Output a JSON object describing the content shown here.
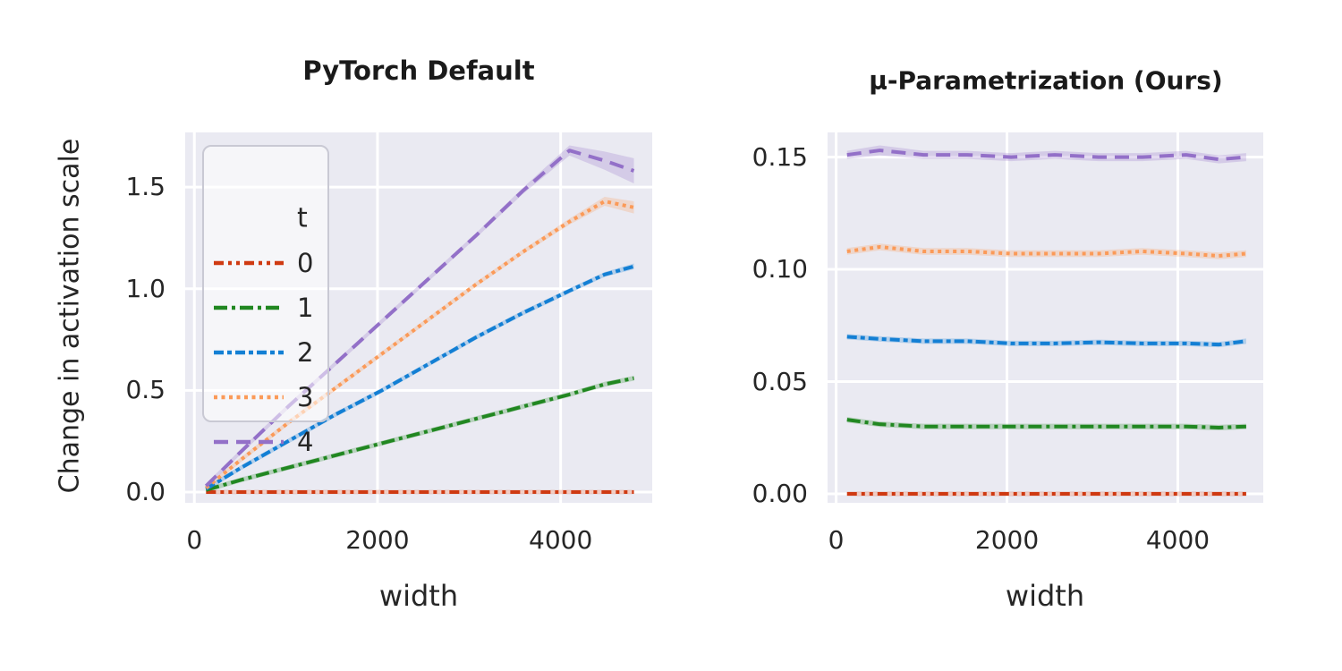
{
  "figure": {
    "background_color": "#ffffff",
    "plot_background_color": "#eaeaf2",
    "grid_color": "#ffffff",
    "text_color": "#262626"
  },
  "legend": {
    "title": "t",
    "entries": [
      {
        "label": "0",
        "color": "#cf3a12",
        "dash": "11 5 4 5 4 5",
        "dash_name": "dash-dot-dot"
      },
      {
        "label": "1",
        "color": "#218721",
        "dash": "15 5 4 5",
        "dash_name": "dash-dot"
      },
      {
        "label": "2",
        "color": "#137fd4",
        "dash": "11 4 5 4",
        "dash_name": "dash-dot-dense"
      },
      {
        "label": "3",
        "color": "#fb9a58",
        "dash": "4 4.5",
        "dash_name": "dotted"
      },
      {
        "label": "4",
        "color": "#9370c8",
        "dash": "16 9",
        "dash_name": "dashed"
      }
    ],
    "position": "upper-left-of-first-panel"
  },
  "chart_data": [
    {
      "type": "line",
      "title": "PyTorch Default",
      "xlabel": "width",
      "ylabel": "Change in activation scale",
      "grid": true,
      "x_ticks": [
        0,
        2000,
        4000
      ],
      "x_tick_labels": [
        "0",
        "2000",
        "4000"
      ],
      "y_ticks": [
        0.0,
        0.5,
        1.0,
        1.5
      ],
      "y_tick_labels": [
        "0.0",
        "0.5",
        "1.0",
        "1.5"
      ],
      "xlim": [
        -100,
        5000
      ],
      "ylim": [
        -0.053,
        1.769
      ],
      "x": [
        128,
        512,
        1024,
        1536,
        2048,
        2560,
        3072,
        3584,
        4096,
        4480,
        4800
      ],
      "series": [
        {
          "name": "0",
          "values": [
            0.0,
            0.0,
            0.0,
            0.0,
            0.0,
            0.0,
            0.0,
            0.0,
            0.0,
            0.0,
            0.0
          ],
          "band": [
            0.01,
            0.01,
            0.01,
            0.01,
            0.01,
            0.01,
            0.01,
            0.01,
            0.01,
            0.01,
            0.01
          ]
        },
        {
          "name": "1",
          "values": [
            0.01,
            0.06,
            0.12,
            0.18,
            0.24,
            0.3,
            0.36,
            0.42,
            0.48,
            0.53,
            0.56
          ],
          "band": [
            0.012,
            0.012,
            0.012,
            0.012,
            0.012,
            0.012,
            0.012,
            0.012,
            0.012,
            0.012,
            0.012
          ]
        },
        {
          "name": "2",
          "values": [
            0.015,
            0.12,
            0.25,
            0.38,
            0.5,
            0.63,
            0.76,
            0.88,
            0.99,
            1.07,
            1.11
          ],
          "band": [
            0.012,
            0.012,
            0.012,
            0.012,
            0.012,
            0.012,
            0.012,
            0.012,
            0.012,
            0.012,
            0.014
          ]
        },
        {
          "name": "3",
          "values": [
            0.02,
            0.16,
            0.34,
            0.51,
            0.68,
            0.85,
            1.02,
            1.18,
            1.33,
            1.43,
            1.4
          ],
          "band": [
            0.012,
            0.012,
            0.012,
            0.012,
            0.012,
            0.012,
            0.012,
            0.012,
            0.015,
            0.022,
            0.03
          ]
        },
        {
          "name": "4",
          "values": [
            0.03,
            0.2,
            0.42,
            0.63,
            0.84,
            1.05,
            1.26,
            1.48,
            1.68,
            1.63,
            1.58
          ],
          "band": [
            0.012,
            0.012,
            0.012,
            0.012,
            0.012,
            0.012,
            0.012,
            0.015,
            0.025,
            0.045,
            0.062
          ]
        }
      ]
    },
    {
      "type": "line",
      "title": "μ-Parametrization (Ours)",
      "xlabel": "width",
      "ylabel": "",
      "grid": true,
      "x_ticks": [
        0,
        2000,
        4000
      ],
      "x_tick_labels": [
        "0",
        "2000",
        "4000"
      ],
      "y_ticks": [
        0.0,
        0.05,
        0.1,
        0.15
      ],
      "y_tick_labels": [
        "0.00",
        "0.05",
        "0.10",
        "0.15"
      ],
      "xlim": [
        -100,
        5000
      ],
      "ylim": [
        -0.004,
        0.161
      ],
      "x": [
        128,
        512,
        1024,
        1536,
        2048,
        2560,
        3072,
        3584,
        4096,
        4480,
        4800
      ],
      "series": [
        {
          "name": "0",
          "values": [
            0.0,
            0.0,
            0.0,
            0.0,
            0.0,
            0.0,
            0.0,
            0.0,
            0.0,
            0.0,
            0.0
          ],
          "band": [
            0.001,
            0.001,
            0.001,
            0.001,
            0.001,
            0.001,
            0.001,
            0.001,
            0.001,
            0.001,
            0.001
          ]
        },
        {
          "name": "1",
          "values": [
            0.033,
            0.031,
            0.03,
            0.03,
            0.03,
            0.03,
            0.03,
            0.03,
            0.03,
            0.0295,
            0.03
          ],
          "band": [
            0.0012,
            0.0012,
            0.0012,
            0.0012,
            0.0012,
            0.0012,
            0.0012,
            0.0012,
            0.0012,
            0.0012,
            0.0012
          ]
        },
        {
          "name": "2",
          "values": [
            0.07,
            0.069,
            0.068,
            0.068,
            0.067,
            0.067,
            0.0675,
            0.067,
            0.067,
            0.0665,
            0.068
          ],
          "band": [
            0.0012,
            0.0012,
            0.0012,
            0.0012,
            0.0012,
            0.0012,
            0.0012,
            0.0012,
            0.0012,
            0.0012,
            0.0012
          ]
        },
        {
          "name": "3",
          "values": [
            0.108,
            0.11,
            0.108,
            0.108,
            0.107,
            0.107,
            0.107,
            0.108,
            0.107,
            0.106,
            0.107
          ],
          "band": [
            0.0015,
            0.0015,
            0.0015,
            0.0015,
            0.0015,
            0.0015,
            0.0015,
            0.0015,
            0.0015,
            0.0015,
            0.0015
          ]
        },
        {
          "name": "4",
          "values": [
            0.151,
            0.153,
            0.151,
            0.151,
            0.15,
            0.151,
            0.15,
            0.15,
            0.151,
            0.149,
            0.15
          ],
          "band": [
            0.0018,
            0.0022,
            0.0018,
            0.0018,
            0.0018,
            0.0018,
            0.0018,
            0.0018,
            0.0018,
            0.0018,
            0.0018
          ]
        }
      ]
    }
  ]
}
